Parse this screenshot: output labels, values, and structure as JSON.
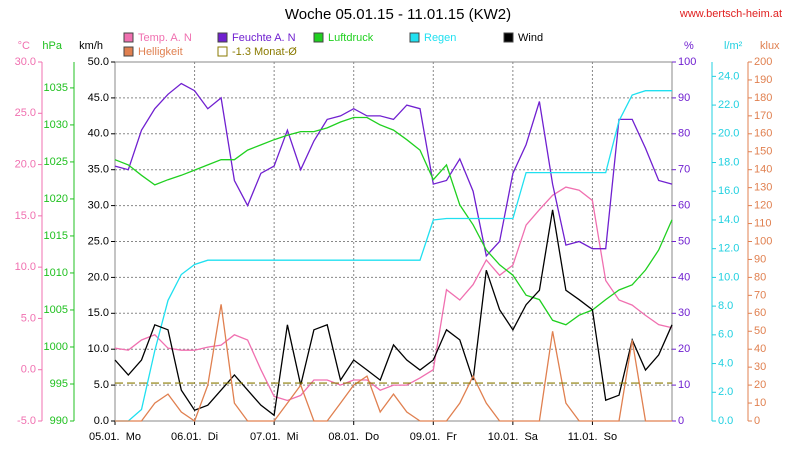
{
  "chart_data": {
    "type": "line",
    "title": "Woche 05.01.15 - 11.01.15 (KW2)",
    "source": "www.bertsch-heim.at",
    "x": [
      0,
      4,
      8,
      12,
      16,
      20,
      24,
      28,
      32,
      36,
      40,
      44,
      48,
      52,
      56,
      60,
      64,
      68,
      72,
      76,
      80,
      84,
      88,
      92,
      96,
      100,
      104,
      108,
      112,
      116,
      120,
      124,
      128,
      132,
      136,
      140,
      144,
      148,
      152,
      156,
      160,
      164,
      168
    ],
    "xlim": [
      0,
      168
    ],
    "xticks": [
      {
        "value": 0,
        "label": "05.01.  Mo"
      },
      {
        "value": 24,
        "label": "06.01.  Di"
      },
      {
        "value": 48,
        "label": "07.01.  Mi"
      },
      {
        "value": 72,
        "label": "08.01.  Do"
      },
      {
        "value": 96,
        "label": "09.01.  Fr"
      },
      {
        "value": 120,
        "label": "10.01.  Sa"
      },
      {
        "value": 144,
        "label": "11.01.  So"
      }
    ],
    "grid": true,
    "axes": [
      {
        "id": "temp",
        "unit": "°C",
        "color": "#f070b0",
        "lim": [
          -5,
          30
        ],
        "ticks": [
          {
            "value": -5,
            "label": "-5.0"
          },
          {
            "value": 0,
            "label": "0.0"
          },
          {
            "value": 5,
            "label": "5.0"
          },
          {
            "value": 10,
            "label": "10.0"
          },
          {
            "value": 15,
            "label": "15.0"
          },
          {
            "value": 20,
            "label": "20.0"
          },
          {
            "value": 25,
            "label": "25.0"
          },
          {
            "value": 30,
            "label": "30.0"
          }
        ]
      },
      {
        "id": "hpa",
        "unit": "hPa",
        "color": "#20c020",
        "lim": [
          990,
          1038.5
        ],
        "ticks": [
          990,
          995,
          1000,
          1005,
          1010,
          1015,
          1020,
          1025,
          1030,
          1035
        ]
      },
      {
        "id": "kmh",
        "unit": "km/h",
        "color": "#000000",
        "lim": [
          0,
          50
        ],
        "grid": true,
        "ticks": [
          {
            "value": 0,
            "label": "0.0"
          },
          {
            "value": 5,
            "label": "5.0"
          },
          {
            "value": 10,
            "label": "10.0"
          },
          {
            "value": 15,
            "label": "15.0"
          },
          {
            "value": 20,
            "label": "20.0"
          },
          {
            "value": 25,
            "label": "25.0"
          },
          {
            "value": 30,
            "label": "30.0"
          },
          {
            "value": 35,
            "label": "35.0"
          },
          {
            "value": 40,
            "label": "40.0"
          },
          {
            "value": 45,
            "label": "45.0"
          },
          {
            "value": 50,
            "label": "50.0"
          }
        ]
      },
      {
        "id": "pct",
        "unit": "%",
        "color": "#7020d0",
        "lim": [
          0,
          100
        ],
        "ticks": [
          0,
          10,
          20,
          30,
          40,
          50,
          60,
          70,
          80,
          90,
          100
        ]
      },
      {
        "id": "rain",
        "unit": "l/m²",
        "color": "#20d0e0",
        "lim": [
          0,
          25
        ],
        "ticks": [
          {
            "value": 0,
            "label": "0.0"
          },
          {
            "value": 2,
            "label": "2.0"
          },
          {
            "value": 4,
            "label": "4.0"
          },
          {
            "value": 6,
            "label": "6.0"
          },
          {
            "value": 8,
            "label": "8.0"
          },
          {
            "value": 10,
            "label": "10.0"
          },
          {
            "value": 12,
            "label": "12.0"
          },
          {
            "value": 14,
            "label": "14.0"
          },
          {
            "value": 16,
            "label": "16.0"
          },
          {
            "value": 18,
            "label": "18.0"
          },
          {
            "value": 20,
            "label": "20.0"
          },
          {
            "value": 22,
            "label": "22.0"
          },
          {
            "value": 24,
            "label": "24.0"
          }
        ]
      },
      {
        "id": "klux",
        "unit": "klux",
        "color": "#e08050",
        "lim": [
          0,
          200
        ],
        "ticks": [
          0,
          10,
          20,
          30,
          40,
          50,
          60,
          70,
          80,
          90,
          100,
          110,
          120,
          130,
          140,
          150,
          160,
          170,
          180,
          190,
          200
        ]
      }
    ],
    "series": [
      {
        "name": "Temp. A. N",
        "axis": "temp",
        "color": "#f070b0",
        "values": [
          2.1,
          1.9,
          2.9,
          3.4,
          2.1,
          1.9,
          1.9,
          2.2,
          2.4,
          3.4,
          2.9,
          0,
          -2.6,
          -3.0,
          -2.5,
          -1.0,
          -1.0,
          -1.5,
          -1.0,
          -1.0,
          -2.0,
          -1.5,
          -1.5,
          -0.8,
          0,
          7.8,
          6.8,
          8.3,
          10.7,
          9.2,
          10.2,
          14.1,
          15.6,
          17.0,
          17.8,
          17.5,
          16.5,
          8.7,
          6.8,
          6.3,
          5.3,
          4.4,
          4.1
        ]
      },
      {
        "name": "Feuchte A. N",
        "axis": "pct",
        "color": "#7020d0",
        "values": [
          71,
          70,
          81,
          87,
          91,
          94,
          92,
          87,
          90,
          67,
          60,
          69,
          71,
          81,
          70,
          78,
          84,
          85,
          87,
          85,
          85,
          84,
          88,
          87,
          66,
          67,
          73,
          64,
          46,
          50,
          69,
          77,
          89,
          66,
          49,
          50,
          48,
          48,
          84,
          84,
          76,
          67,
          66
        ]
      },
      {
        "name": "Luftdruck",
        "axis": "hpa",
        "color": "#20d020",
        "values": [
          1025.3,
          1024.6,
          1023.2,
          1021.9,
          1022.6,
          1023.2,
          1023.9,
          1024.6,
          1025.3,
          1025.3,
          1026.6,
          1027.3,
          1028.0,
          1028.6,
          1029.1,
          1029.1,
          1029.6,
          1030.4,
          1031.0,
          1031.0,
          1030.0,
          1029.3,
          1028.0,
          1026.6,
          1022.6,
          1024.6,
          1019.2,
          1016.5,
          1013.1,
          1011.1,
          1009.7,
          1007.0,
          1006.4,
          1003.6,
          1003.0,
          1004.3,
          1005.0,
          1006.4,
          1007.7,
          1008.4,
          1010.4,
          1013.1,
          1017.2
        ]
      },
      {
        "name": "Regen",
        "axis": "rain",
        "color": "#20e0f0",
        "values": [
          0,
          0,
          0.8,
          4.9,
          8.4,
          10.2,
          10.9,
          11.2,
          11.2,
          11.2,
          11.2,
          11.2,
          11.2,
          11.2,
          11.2,
          11.2,
          11.2,
          11.2,
          11.2,
          11.2,
          11.2,
          11.2,
          11.2,
          11.2,
          14.0,
          14.1,
          14.1,
          14.1,
          14.1,
          14.1,
          14.1,
          17.3,
          17.3,
          17.3,
          17.3,
          17.3,
          17.3,
          17.3,
          20.9,
          22.7,
          23.0,
          23.0,
          23.0
        ]
      },
      {
        "name": "Wind",
        "axis": "kmh",
        "color": "#000000",
        "values": [
          8.5,
          6.4,
          8.5,
          13.4,
          12.7,
          4.3,
          1.5,
          2.2,
          4.3,
          6.4,
          4.3,
          2.2,
          0.8,
          13.4,
          5.0,
          12.7,
          13.4,
          5.7,
          8.5,
          7.1,
          5.7,
          10.6,
          8.5,
          7.1,
          8.5,
          12.7,
          11.3,
          5.7,
          21.0,
          15.5,
          12.7,
          16.2,
          18.2,
          29.4,
          18.2,
          16.9,
          15.5,
          2.9,
          3.6,
          11.3,
          7.1,
          9.2,
          13.4
        ]
      },
      {
        "name": "Helligkeit",
        "axis": "klux",
        "color": "#e08050",
        "values": [
          0,
          0,
          0,
          10,
          15,
          5,
          0,
          20,
          65,
          10,
          0,
          0,
          0,
          10,
          20,
          0,
          0,
          10,
          20,
          25,
          5,
          15,
          5,
          0,
          0,
          0,
          10,
          25,
          10,
          0,
          0,
          0,
          0,
          50,
          10,
          0,
          0,
          0,
          0,
          45,
          0,
          0,
          0
        ]
      },
      {
        "name": "-1.3 Monat-Ø",
        "axis": "temp",
        "color": "#8a7a00",
        "dashed": true,
        "value": -1.3
      }
    ]
  }
}
